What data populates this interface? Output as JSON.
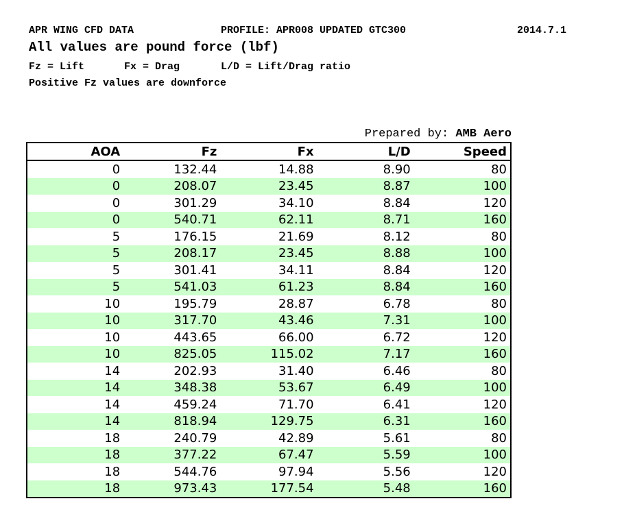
{
  "header": {
    "title": "APR WING CFD DATA",
    "profile": "PROFILE: APR008 UPDATED GTC300",
    "date": "2014.7.1",
    "subtitle": "All values are pound force (lbf)",
    "legend_fz": "Fz = Lift",
    "legend_fx": "Fx = Drag",
    "legend_ld": "L/D = Lift/Drag ratio",
    "note": "Positive Fz values are downforce"
  },
  "prepared_by": {
    "label": "Prepared by: ",
    "value": "AMB Aero"
  },
  "table": {
    "columns": [
      "AOA",
      "Fz",
      "Fx",
      "L/D",
      "Speed"
    ],
    "rows": [
      [
        "0",
        "132.44",
        "14.88",
        "8.90",
        "80"
      ],
      [
        "0",
        "208.07",
        "23.45",
        "8.87",
        "100"
      ],
      [
        "0",
        "301.29",
        "34.10",
        "8.84",
        "120"
      ],
      [
        "0",
        "540.71",
        "62.11",
        "8.71",
        "160"
      ],
      [
        "5",
        "176.15",
        "21.69",
        "8.12",
        "80"
      ],
      [
        "5",
        "208.17",
        "23.45",
        "8.88",
        "100"
      ],
      [
        "5",
        "301.41",
        "34.11",
        "8.84",
        "120"
      ],
      [
        "5",
        "541.03",
        "61.23",
        "8.84",
        "160"
      ],
      [
        "10",
        "195.79",
        "28.87",
        "6.78",
        "80"
      ],
      [
        "10",
        "317.70",
        "43.46",
        "7.31",
        "100"
      ],
      [
        "10",
        "443.65",
        "66.00",
        "6.72",
        "120"
      ],
      [
        "10",
        "825.05",
        "115.02",
        "7.17",
        "160"
      ],
      [
        "14",
        "202.93",
        "31.40",
        "6.46",
        "80"
      ],
      [
        "14",
        "348.38",
        "53.67",
        "6.49",
        "100"
      ],
      [
        "14",
        "459.24",
        "71.70",
        "6.41",
        "120"
      ],
      [
        "14",
        "818.94",
        "129.75",
        "6.31",
        "160"
      ],
      [
        "18",
        "240.79",
        "42.89",
        "5.61",
        "80"
      ],
      [
        "18",
        "377.22",
        "67.47",
        "5.59",
        "100"
      ],
      [
        "18",
        "544.76",
        "97.94",
        "5.56",
        "120"
      ],
      [
        "18",
        "973.43",
        "177.54",
        "5.48",
        "160"
      ]
    ]
  },
  "colors": {
    "row_alt_green": "#ccffcc",
    "border": "#000000",
    "text": "#000000",
    "background": "#ffffff"
  }
}
